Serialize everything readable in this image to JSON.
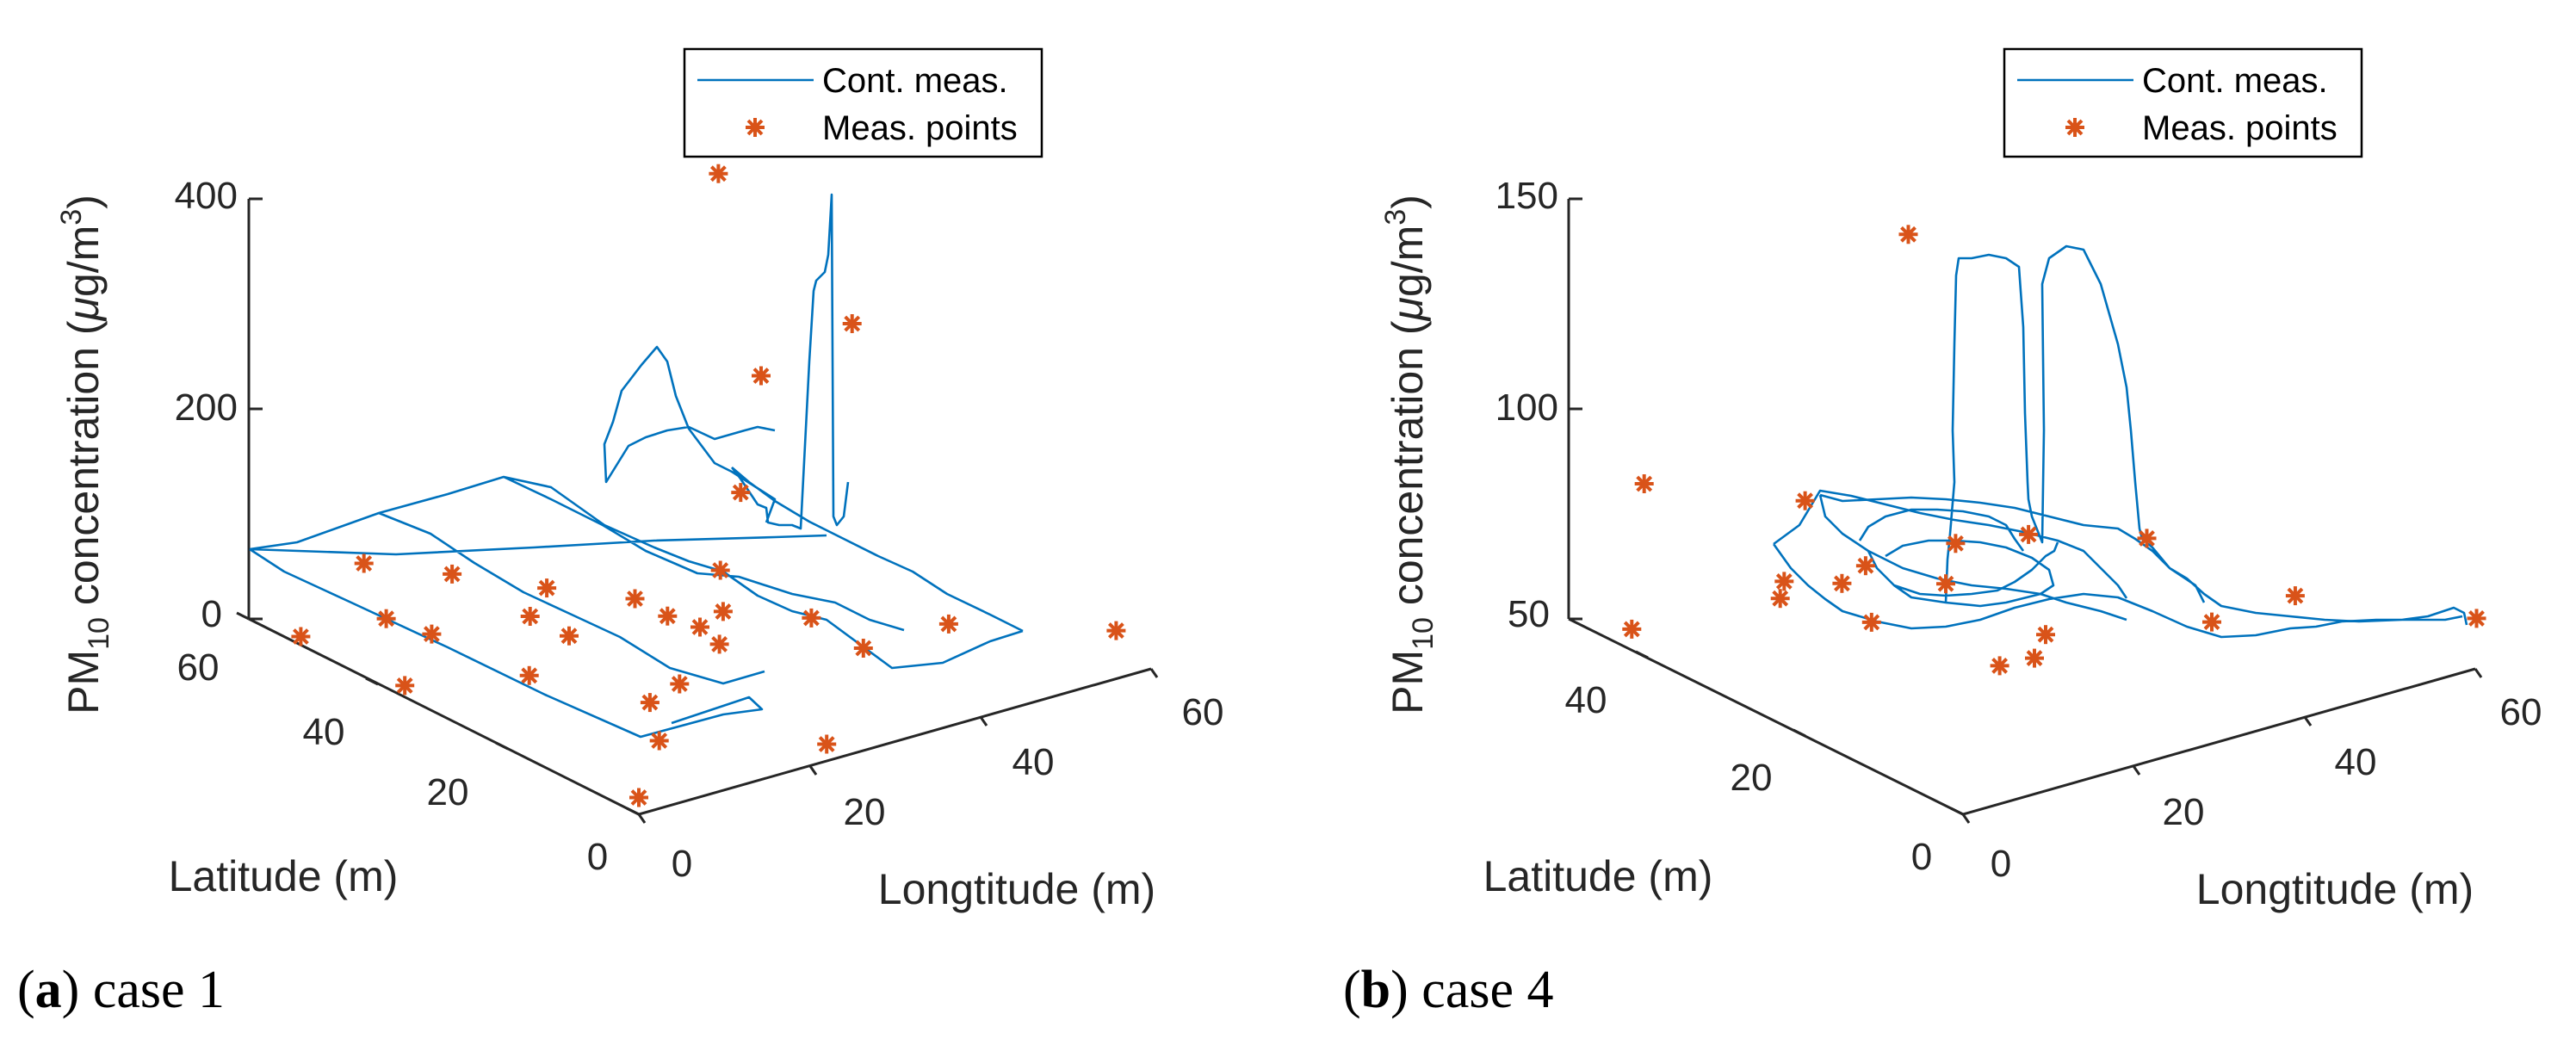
{
  "panels": [
    {
      "caption_letter": "a",
      "caption_text": "case 1",
      "legend": {
        "line_label": "Cont. meas.",
        "marker_label": "Meas. points"
      },
      "zlabel_pre": "PM",
      "zlabel_sub": "10",
      "zlabel_mid": " concentration (",
      "zlabel_mu": "μ",
      "zlabel_unit": "g/m",
      "zlabel_sup": "3",
      "zlabel_end": ")",
      "xlabel": "Longtitude (m)",
      "ylabel": "Latitude (m)",
      "xticks": [
        "0",
        "20",
        "40",
        "60"
      ],
      "yticks": [
        "0",
        "20",
        "40",
        "60"
      ],
      "zticks": [
        "0",
        "200",
        "400"
      ]
    },
    {
      "caption_letter": "b",
      "caption_text": "case 4",
      "legend": {
        "line_label": "Cont. meas.",
        "marker_label": "Meas. points"
      },
      "zlabel_pre": "PM",
      "zlabel_sub": "10",
      "zlabel_mid": " concentration (",
      "zlabel_mu": "μ",
      "zlabel_unit": "g/m",
      "zlabel_sup": "3",
      "zlabel_end": ")",
      "xlabel": "Longtitude (m)",
      "ylabel": "Latitude (m)",
      "xticks": [
        "0",
        "20",
        "40",
        "60"
      ],
      "yticks": [
        "0",
        "20",
        "40"
      ],
      "zticks": [
        "50",
        "100",
        "150"
      ]
    }
  ],
  "colors": {
    "line": "#0072BD",
    "marker": "#D95319",
    "axis": "#262626"
  },
  "chart_data": [
    {
      "type": "line3d",
      "title": "(a) case 1",
      "xlabel": "Longtitude (m)",
      "ylabel": "Latitude (m)",
      "zlabel": "PM10 concentration (μg/m3)",
      "xlim": [
        0,
        60
      ],
      "ylim": [
        0,
        60
      ],
      "zlim": [
        0,
        400
      ],
      "series": [
        {
          "name": "Cont. meas.",
          "kind": "line"
        },
        {
          "name": "Meas. points",
          "kind": "marker"
        }
      ],
      "points": [
        {
          "x": 62,
          "y": 8,
          "z": 7
        },
        {
          "x": 50,
          "y": 18,
          "z": 10
        },
        {
          "x": 40,
          "y": 26,
          "z": 14
        },
        {
          "x": 30,
          "y": 35,
          "z": 11
        },
        {
          "x": 20,
          "y": 43,
          "z": 9
        },
        {
          "x": 10,
          "y": 52,
          "z": 2
        },
        {
          "x": 15,
          "y": 62,
          "z": 12
        },
        {
          "x": 20,
          "y": 55,
          "z": 12
        },
        {
          "x": 25,
          "y": 47,
          "z": 12
        },
        {
          "x": 30,
          "y": 40,
          "z": 12
        },
        {
          "x": 35,
          "y": 33,
          "z": 10
        },
        {
          "x": 40,
          "y": 18,
          "z": 10
        },
        {
          "x": 30,
          "y": 27,
          "z": 9
        },
        {
          "x": 20,
          "y": 37,
          "z": 9
        },
        {
          "x": 10,
          "y": 45,
          "z": 9
        },
        {
          "x": 0,
          "y": 52,
          "z": 8
        },
        {
          "x": 0,
          "y": 0,
          "z": 16
        },
        {
          "x": 10,
          "y": 10,
          "z": 16
        },
        {
          "x": 20,
          "y": 20,
          "z": 16
        },
        {
          "x": 30,
          "y": 30,
          "z": 16
        },
        {
          "x": 40,
          "y": 40,
          "z": 16
        },
        {
          "x": 50,
          "y": 50,
          "z": 36
        },
        {
          "x": 60,
          "y": 60,
          "z": 93
        },
        {
          "x": 60,
          "y": 46,
          "z": 186
        },
        {
          "x": 55,
          "y": 60,
          "z": 297
        },
        {
          "x": 22,
          "y": 0,
          "z": 16
        },
        {
          "x": 15,
          "y": 18,
          "z": 16
        },
        {
          "x": 10,
          "y": 30,
          "z": 16
        },
        {
          "x": 0,
          "y": 36,
          "z": 11
        }
      ]
    },
    {
      "type": "line3d",
      "title": "(b) case 4",
      "xlabel": "Longtitude (m)",
      "ylabel": "Latitude (m)",
      "zlabel": "PM10 concentration (μg/m3)",
      "xlim": [
        0,
        60
      ],
      "ylim": [
        0,
        50
      ],
      "zlim": [
        50,
        150
      ],
      "series": [
        {
          "name": "Cont. meas.",
          "kind": "line"
        },
        {
          "name": "Meas. points",
          "kind": "marker"
        }
      ],
      "points": [
        {
          "x": 62,
          "y": 2,
          "z": 59
        },
        {
          "x": 43,
          "y": 15,
          "z": 57
        },
        {
          "x": 30,
          "y": 22,
          "z": 55
        },
        {
          "x": 25,
          "y": 28,
          "z": 74
        },
        {
          "x": 24,
          "y": 46,
          "z": 68
        },
        {
          "x": 7,
          "y": 48,
          "z": 80
        },
        {
          "x": 10,
          "y": 34,
          "z": 64
        },
        {
          "x": 25,
          "y": 18,
          "z": 56
        },
        {
          "x": 28,
          "y": 22,
          "z": 80
        },
        {
          "x": 25,
          "y": 34,
          "z": 142
        },
        {
          "x": 20,
          "y": 37,
          "z": 59
        },
        {
          "x": 22,
          "y": 26,
          "z": 68
        },
        {
          "x": 17,
          "y": 30,
          "z": 58
        },
        {
          "x": 20,
          "y": 34,
          "z": 66
        },
        {
          "x": 16,
          "y": 40,
          "z": 59
        },
        {
          "x": 0,
          "y": 42,
          "z": 55
        },
        {
          "x": 20,
          "y": 17,
          "z": 58
        },
        {
          "x": 40,
          "y": 20,
          "z": 74
        },
        {
          "x": 50,
          "y": 12,
          "z": 62
        }
      ]
    }
  ]
}
